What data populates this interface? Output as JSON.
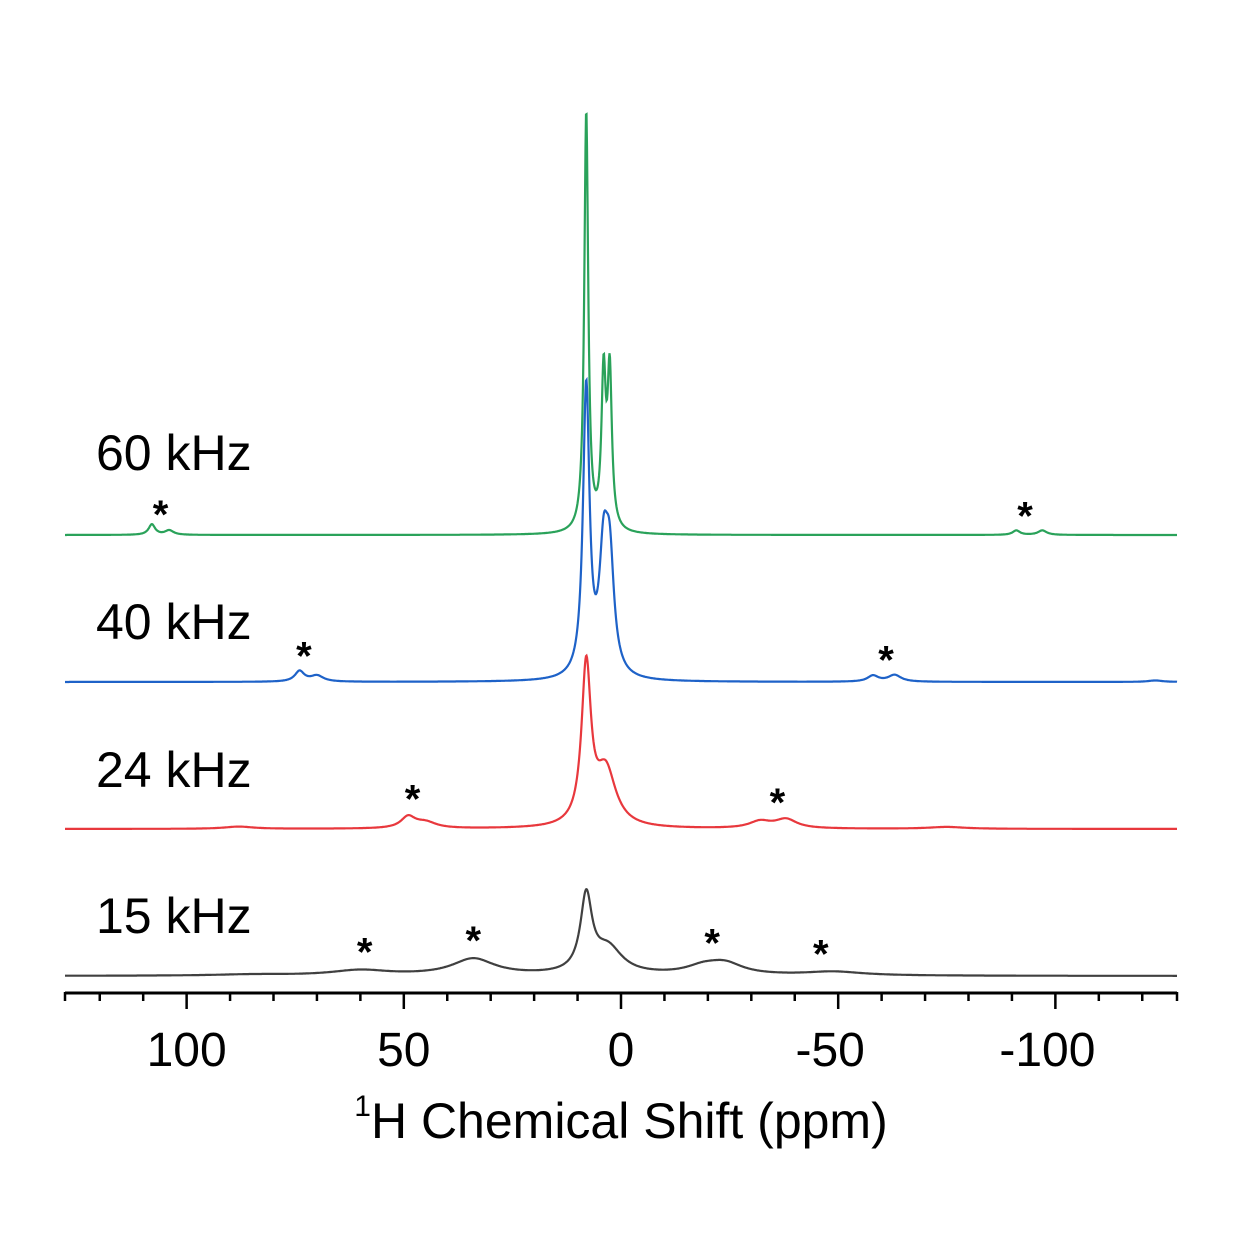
{
  "chart_data": {
    "type": "line",
    "title": "",
    "xlabel": "Chemical Shift (ppm)",
    "xlabel_superscript": "1",
    "xlabel_nucleus": "H",
    "ylabel": "",
    "xlim": [
      128,
      -128
    ],
    "x_reversed": true,
    "x_ticks_major": [
      100,
      50,
      0,
      -50,
      -100
    ],
    "x_tick_labels": [
      "100",
      "50",
      "0",
      "-50",
      "-100"
    ],
    "x_minor_tick_step": 10,
    "grid": false,
    "y_axis_visible": false,
    "spinning_sideband_marker": "*",
    "series": [
      {
        "name": "15 kHz",
        "color": "#404040",
        "peaks": [
          {
            "ppm": 8.0,
            "height": 1.0,
            "width": 1.6
          },
          {
            "ppm": 3.0,
            "height": 0.35,
            "width": 4.0
          },
          {
            "ppm": -19,
            "height": 0.1,
            "width": 5.0
          },
          {
            "ppm": -24,
            "height": 0.14,
            "width": 5.0
          },
          {
            "ppm": 34,
            "height": 0.22,
            "width": 6.0
          },
          {
            "ppm": 60,
            "height": 0.07,
            "width": 8.0
          },
          {
            "ppm": -49,
            "height": 0.05,
            "width": 8.0
          },
          {
            "ppm": 85,
            "height": 0.015,
            "width": 10.0
          }
        ],
        "sideband_markers_ppm": [
          59,
          34,
          -21,
          -46
        ]
      },
      {
        "name": "24 kHz",
        "color": "#e8383d",
        "peaks": [
          {
            "ppm": 8.0,
            "height": 2.1,
            "width": 1.3
          },
          {
            "ppm": 3.5,
            "height": 0.75,
            "width": 2.8
          },
          {
            "ppm": 49,
            "height": 0.15,
            "width": 2.0
          },
          {
            "ppm": 45,
            "height": 0.08,
            "width": 3.0
          },
          {
            "ppm": -32,
            "height": 0.09,
            "width": 3.0
          },
          {
            "ppm": -38,
            "height": 0.12,
            "width": 3.0
          },
          {
            "ppm": 88,
            "height": 0.03,
            "width": 4.0
          },
          {
            "ppm": -75,
            "height": 0.025,
            "width": 5.0
          }
        ],
        "sideband_markers_ppm": [
          48,
          -36
        ]
      },
      {
        "name": "40 kHz",
        "color": "#1e62c8",
        "peaks": [
          {
            "ppm": 8.0,
            "height": 3.85,
            "width": 0.9
          },
          {
            "ppm": 4.0,
            "height": 1.45,
            "width": 1.2
          },
          {
            "ppm": 2.6,
            "height": 1.4,
            "width": 1.2
          },
          {
            "ppm": 74,
            "height": 0.14,
            "width": 1.3
          },
          {
            "ppm": 70,
            "height": 0.08,
            "width": 1.8
          },
          {
            "ppm": -58,
            "height": 0.08,
            "width": 1.5
          },
          {
            "ppm": -63,
            "height": 0.09,
            "width": 1.8
          },
          {
            "ppm": -123,
            "height": 0.02,
            "width": 2.0
          }
        ],
        "sideband_markers_ppm": [
          73,
          -61
        ]
      },
      {
        "name": "60 kHz",
        "color": "#2aa25a",
        "peaks": [
          {
            "ppm": 8.0,
            "height": 5.6,
            "width": 0.55
          },
          {
            "ppm": 4.0,
            "height": 2.0,
            "width": 0.6
          },
          {
            "ppm": 2.6,
            "height": 2.05,
            "width": 0.6
          },
          {
            "ppm": 108,
            "height": 0.14,
            "width": 0.9
          },
          {
            "ppm": 104,
            "height": 0.06,
            "width": 1.2
          },
          {
            "ppm": -91,
            "height": 0.06,
            "width": 1.0
          },
          {
            "ppm": -97,
            "height": 0.06,
            "width": 1.2
          }
        ],
        "sideband_markers_ppm": [
          106,
          -93
        ]
      }
    ]
  }
}
